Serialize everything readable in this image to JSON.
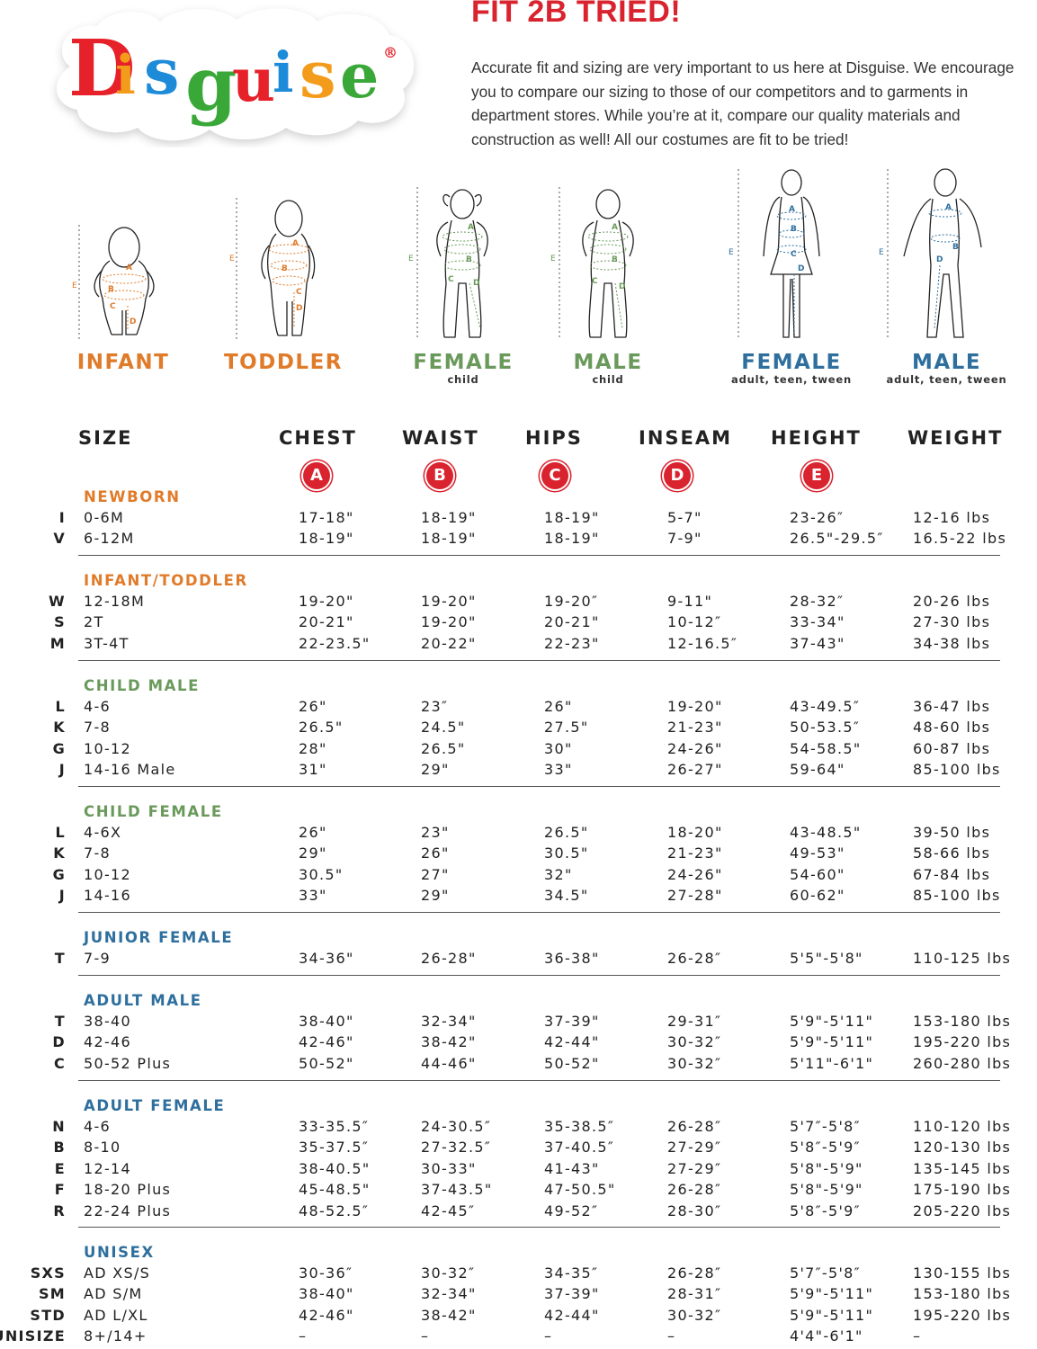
{
  "brand": {
    "name": "Disguise",
    "registered": "®",
    "letter_colors": [
      "#e62129",
      "#f39c1c",
      "#1e8bd8",
      "#3aa839",
      "#e62129",
      "#1e8bd8",
      "#f39c1c",
      "#3aa839"
    ]
  },
  "headline": "FIT 2B TRIED!",
  "intro": "Accurate fit and sizing are very important to us here at Disguise. We encourage you to compare our sizing to those of our competitors and to garments in department stores. While you’re at it, compare our quality materials and construction as well! All our costumes are fit to be tried!",
  "figures": [
    {
      "label": "INFANT",
      "sub": "",
      "color": "#e07b2a"
    },
    {
      "label": "TODDLER",
      "sub": "",
      "color": "#e07b2a"
    },
    {
      "label": "FEMALE",
      "sub": "child",
      "color": "#6a9a5b"
    },
    {
      "label": "MALE",
      "sub": "child",
      "color": "#6a9a5b"
    },
    {
      "label": "FEMALE",
      "sub": "adult, teen, tween",
      "color": "#2e6f9e"
    },
    {
      "label": "MALE",
      "sub": "adult, teen, tween",
      "color": "#2e6f9e"
    }
  ],
  "measure_letters": {
    "a": "A",
    "b": "B",
    "c": "C",
    "d": "D",
    "e": "E"
  },
  "headers": {
    "size": "SIZE",
    "chest": "CHEST",
    "waist": "WAIST",
    "hips": "HIPS",
    "inseam": "INSEAM",
    "height": "HEIGHT",
    "weight": "WEIGHT",
    "badges": {
      "chest": "A",
      "waist": "B",
      "hips": "C",
      "inseam": "D",
      "height": "E"
    }
  },
  "sections": [
    {
      "title": "NEWBORN",
      "color": "#e07b2a",
      "rows": [
        {
          "code": "I",
          "size": "0-6M",
          "chest": "17-18\"",
          "waist": "18-19\"",
          "hips": "18-19\"",
          "inseam": "5-7\"",
          "height": "23-26″",
          "weight": "12-16 lbs"
        },
        {
          "code": "V",
          "size": "6-12M",
          "chest": "18-19\"",
          "waist": "18-19\"",
          "hips": "18-19\"",
          "inseam": "7-9\"",
          "height": "26.5\"-29.5″",
          "weight": "16.5-22 lbs"
        }
      ]
    },
    {
      "title": "INFANT/TODDLER",
      "color": "#e07b2a",
      "rows": [
        {
          "code": "W",
          "size": "12-18M",
          "chest": "19-20\"",
          "waist": "19-20\"",
          "hips": "19-20″",
          "inseam": "9-11\"",
          "height": "28-32″",
          "weight": "20-26 lbs"
        },
        {
          "code": "S",
          "size": "2T",
          "chest": "20-21\"",
          "waist": "19-20\"",
          "hips": "20-21\"",
          "inseam": "10-12″",
          "height": "33-34\"",
          "weight": "27-30 lbs"
        },
        {
          "code": "M",
          "size": "3T-4T",
          "chest": "22-23.5\"",
          "waist": "20-22\"",
          "hips": "22-23\"",
          "inseam": "12-16.5″",
          "height": "37-43\"",
          "weight": "34-38 lbs"
        }
      ]
    },
    {
      "title": "CHILD MALE",
      "color": "#6a9a5b",
      "rows": [
        {
          "code": "L",
          "size": "4-6",
          "chest": "26\"",
          "waist": "23″",
          "hips": "26\"",
          "inseam": "19-20\"",
          "height": "43-49.5″",
          "weight": "36-47 lbs"
        },
        {
          "code": "K",
          "size": "7-8",
          "chest": "26.5\"",
          "waist": "24.5\"",
          "hips": "27.5\"",
          "inseam": "21-23\"",
          "height": "50-53.5″",
          "weight": "48-60 lbs"
        },
        {
          "code": "G",
          "size": "10-12",
          "chest": "28\"",
          "waist": "26.5\"",
          "hips": "30\"",
          "inseam": "24-26\"",
          "height": "54-58.5\"",
          "weight": "60-87 lbs"
        },
        {
          "code": "J",
          "size": "14-16 Male",
          "chest": "31\"",
          "waist": "29\"",
          "hips": "33\"",
          "inseam": "26-27\"",
          "height": "59-64\"",
          "weight": "85-100 lbs"
        }
      ]
    },
    {
      "title": "CHILD FEMALE",
      "color": "#6a9a5b",
      "rows": [
        {
          "code": "L",
          "size": "4-6X",
          "chest": "26\"",
          "waist": "23\"",
          "hips": "26.5\"",
          "inseam": "18-20\"",
          "height": "43-48.5\"",
          "weight": "39-50 lbs"
        },
        {
          "code": "K",
          "size": "7-8",
          "chest": "29\"",
          "waist": "26\"",
          "hips": "30.5\"",
          "inseam": "21-23\"",
          "height": "49-53\"",
          "weight": "58-66 lbs"
        },
        {
          "code": "G",
          "size": "10-12",
          "chest": "30.5\"",
          "waist": "27\"",
          "hips": "32\"",
          "inseam": "24-26\"",
          "height": "54-60\"",
          "weight": "67-84 lbs"
        },
        {
          "code": "J",
          "size": "14-16",
          "chest": "33\"",
          "waist": "29\"",
          "hips": "34.5\"",
          "inseam": "27-28\"",
          "height": "60-62\"",
          "weight": "85-100 lbs"
        }
      ]
    },
    {
      "title": "JUNIOR FEMALE",
      "color": "#2e6f9e",
      "rows": [
        {
          "code": "T",
          "size": "7-9",
          "chest": "34-36\"",
          "waist": "26-28\"",
          "hips": "36-38\"",
          "inseam": "26-28″",
          "height": "5'5\"-5'8\"",
          "weight": "110-125 lbs"
        }
      ]
    },
    {
      "title": "ADULT MALE",
      "color": "#2e6f9e",
      "rows": [
        {
          "code": "T",
          "size": "38-40",
          "chest": "38-40\"",
          "waist": "32-34\"",
          "hips": "37-39\"",
          "inseam": "29-31″",
          "height": "5'9\"-5'11\"",
          "weight": "153-180 lbs"
        },
        {
          "code": "D",
          "size": "42-46",
          "chest": "42-46\"",
          "waist": "38-42\"",
          "hips": "42-44\"",
          "inseam": "30-32″",
          "height": "5'9\"-5'11\"",
          "weight": "195-220 lbs"
        },
        {
          "code": "C",
          "size": "50-52 Plus",
          "chest": "50-52\"",
          "waist": "44-46\"",
          "hips": "50-52\"",
          "inseam": "30-32″",
          "height": "5'11\"-6'1\"",
          "weight": "260-280 lbs"
        }
      ]
    },
    {
      "title": "ADULT FEMALE",
      "color": "#2e6f9e",
      "rows": [
        {
          "code": "N",
          "size": "4-6",
          "chest": "33-35.5″",
          "waist": "24-30.5″",
          "hips": "35-38.5″",
          "inseam": "26-28″",
          "height": "5'7″-5'8″",
          "weight": "110-120 lbs"
        },
        {
          "code": "B",
          "size": "8-10",
          "chest": "35-37.5″",
          "waist": "27-32.5″",
          "hips": "37-40.5″",
          "inseam": "27-29″",
          "height": "5'8″-5'9″",
          "weight": "120-130 lbs"
        },
        {
          "code": "E",
          "size": "12-14",
          "chest": "38-40.5\"",
          "waist": "30-33\"",
          "hips": "41-43\"",
          "inseam": "27-29″",
          "height": "5'8\"-5'9\"",
          "weight": "135-145 lbs"
        },
        {
          "code": "F",
          "size": "18-20 Plus",
          "chest": "45-48.5\"",
          "waist": "37-43.5\"",
          "hips": "47-50.5\"",
          "inseam": "26-28″",
          "height": "5'8\"-5'9\"",
          "weight": "175-190 lbs"
        },
        {
          "code": "R",
          "size": "22-24 Plus",
          "chest": "48-52.5″",
          "waist": "42-45″",
          "hips": "49-52″",
          "inseam": "28-30″",
          "height": "5'8″-5'9″",
          "weight": "205-220 lbs"
        }
      ]
    },
    {
      "title": "UNISEX",
      "color": "#2e6f9e",
      "rows": [
        {
          "code": "SXS",
          "size": "AD XS/S",
          "chest": "30-36″",
          "waist": "30-32″",
          "hips": "34-35″",
          "inseam": "26-28″",
          "height": "5'7″-5'8″",
          "weight": "130-155 lbs"
        },
        {
          "code": "SM",
          "size": "AD S/M",
          "chest": "38-40\"",
          "waist": "32-34\"",
          "hips": "37-39\"",
          "inseam": "28-31″",
          "height": "5'9\"-5'11\"",
          "weight": "153-180 lbs"
        },
        {
          "code": "STD",
          "size": "AD L/XL",
          "chest": "42-46\"",
          "waist": "38-42\"",
          "hips": "42-44\"",
          "inseam": "30-32″",
          "height": "5'9\"-5'11\"",
          "weight": "195-220 lbs"
        },
        {
          "code": "UNISIZE",
          "size": "8+/14+",
          "chest": "–",
          "waist": "–",
          "hips": "–",
          "inseam": "–",
          "height": "4'4\"-6'1\"",
          "weight": "–"
        }
      ]
    }
  ]
}
